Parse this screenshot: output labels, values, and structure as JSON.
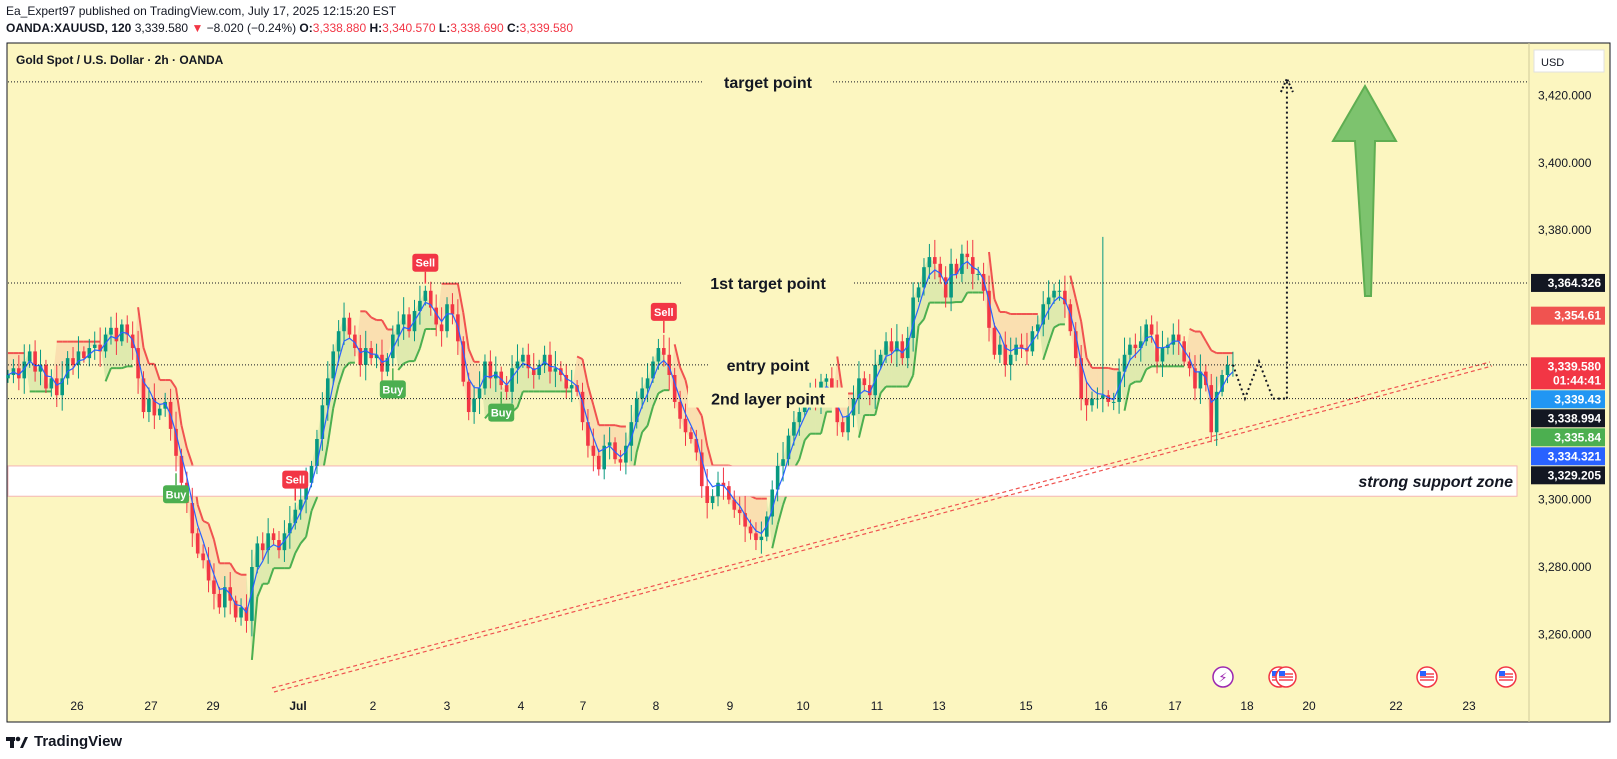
{
  "header": {
    "published": "Ea_Expert97 published on TradingView.com, July 17, 2025 12:15:20 EST",
    "symbol": "OANDA:XAUUSD, 120",
    "last": "3,339.580",
    "change": "−8.020 (−0.24%)",
    "o_label": "O:",
    "o": "3,338.880",
    "h_label": "H:",
    "h": "3,340.570",
    "l_label": "L:",
    "l": "3,338.690",
    "c_label": "C:",
    "c": "3,339.580"
  },
  "footer": {
    "brand": "TradingView"
  },
  "colors": {
    "bg": "#fcf6c0",
    "up": "#089981",
    "down": "#f23645",
    "st_up": "#4caf50",
    "st_down": "#f05350",
    "ema": "#2962ff",
    "arrow": "#7dc36e"
  },
  "chart_data": {
    "type": "candlestick",
    "title": "Gold Spot / U.S. Dollar · 2h · OANDA",
    "currency": "USD",
    "ylim": [
      3246,
      3428
    ],
    "y_ticks": [
      "3,260.000",
      "3,280.000",
      "3,300.000",
      "3,380.000",
      "3,400.000",
      "3,420.000"
    ],
    "y_tick_values": [
      3260,
      3280,
      3300,
      3380,
      3400,
      3420
    ],
    "x_ticks": [
      "26",
      "27",
      "29",
      "Jul",
      "2",
      "3",
      "4",
      "7",
      "8",
      "9",
      "10",
      "11",
      "13",
      "15",
      "16",
      "17",
      "18",
      "20",
      "22",
      "23"
    ],
    "levels": [
      {
        "label": "target point",
        "value": 3424
      },
      {
        "label": "1st target point",
        "value": 3364.3
      },
      {
        "label": "entry point",
        "value": 3340
      },
      {
        "label": "2nd layer point",
        "value": 3330
      }
    ],
    "support_zone": {
      "label": "strong support zone",
      "top": 3310,
      "bottom": 3301
    },
    "price_tags": [
      {
        "value": 3364.326,
        "text": "3,364.326",
        "sub": "",
        "bg": "#131722"
      },
      {
        "value": 3354.61,
        "text": "3,354.61",
        "sub": "",
        "bg": "#f05350"
      },
      {
        "value": 3339.58,
        "text": "3,339.580",
        "sub": "01:44:41",
        "bg": "#f23645"
      },
      {
        "value": 3339.43,
        "text": "3,339.43",
        "sub": "",
        "bg": "#2196f3"
      },
      {
        "value": 3338.994,
        "text": "3,338.994",
        "sub": "",
        "bg": "#131722"
      },
      {
        "value": 3335.84,
        "text": "3,335.84",
        "sub": "",
        "bg": "#4caf50"
      },
      {
        "value": 3334.321,
        "text": "3,334.321",
        "sub": "",
        "bg": "#2962ff"
      },
      {
        "value": 3329.205,
        "text": "3,329.205",
        "sub": "",
        "bg": "#131722"
      }
    ],
    "signals": [
      {
        "type": "Sell",
        "slot": 53
      },
      {
        "type": "Sell",
        "slot": 77
      },
      {
        "type": "Sell",
        "slot": 121
      },
      {
        "type": "Buy",
        "slot": 31
      },
      {
        "type": "Buy",
        "slot": 71
      },
      {
        "type": "Buy",
        "slot": 91
      }
    ],
    "closes": [
      3337,
      3339,
      3336,
      3341,
      3344,
      3338,
      3340,
      3333,
      3336,
      3331,
      3336,
      3342,
      3340,
      3344,
      3342,
      3345,
      3346,
      3344,
      3349,
      3351,
      3347,
      3352,
      3349,
      3345,
      3336,
      3326,
      3330,
      3325,
      3327,
      3329,
      3321,
      3313,
      3305,
      3299,
      3290,
      3284,
      3282,
      3276,
      3272,
      3268,
      3274,
      3270,
      3265,
      3268,
      3264,
      3280,
      3287,
      3285,
      3290,
      3288,
      3285,
      3290,
      3293,
      3297,
      3300,
      3305,
      3310,
      3318,
      3328,
      3336,
      3344,
      3350,
      3354,
      3349,
      3345,
      3340,
      3345,
      3342,
      3343,
      3338,
      3342,
      3349,
      3352,
      3355,
      3350,
      3356,
      3359,
      3362,
      3357,
      3352,
      3350,
      3358,
      3355,
      3347,
      3335,
      3326,
      3330,
      3333,
      3341,
      3336,
      3338,
      3334,
      3332,
      3339,
      3341,
      3343,
      3339,
      3337,
      3340,
      3343,
      3338,
      3339,
      3337,
      3333,
      3334,
      3332,
      3323,
      3316,
      3313,
      3309,
      3316,
      3317,
      3312,
      3311,
      3316,
      3323,
      3330,
      3333,
      3336,
      3341,
      3345,
      3343,
      3337,
      3329,
      3324,
      3320,
      3318,
      3314,
      3304,
      3299,
      3301,
      3305,
      3304,
      3300,
      3297,
      3296,
      3292,
      3290,
      3288,
      3289,
      3295,
      3303,
      3310,
      3312,
      3319,
      3323,
      3326,
      3329,
      3332,
      3330,
      3335,
      3336,
      3331,
      3323,
      3320,
      3325,
      3330,
      3336,
      3334,
      3331,
      3340,
      3343,
      3347,
      3344,
      3347,
      3342,
      3348,
      3360,
      3363,
      3369,
      3372,
      3370,
      3366,
      3360,
      3370,
      3367,
      3373,
      3372,
      3367,
      3367,
      3362,
      3351,
      3343,
      3346,
      3340,
      3343,
      3346,
      3345,
      3344,
      3350,
      3352,
      3358,
      3360,
      3362,
      3362,
      3358,
      3350,
      3342,
      3330,
      3328,
      3330,
      3330,
      3331,
      3329,
      3329,
      3338,
      3343,
      3346,
      3345,
      3347,
      3352,
      3349,
      3341,
      3345,
      3346,
      3349,
      3347,
      3341,
      3339,
      3333,
      3338,
      3334,
      3320,
      3332,
      3337,
      3340,
      3340
    ]
  }
}
